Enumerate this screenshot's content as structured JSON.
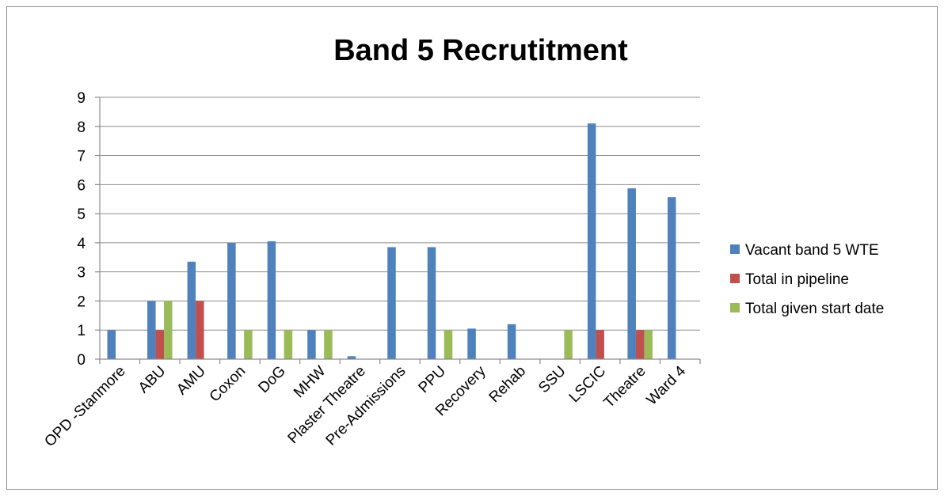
{
  "chart_data": {
    "type": "bar",
    "title": "Band 5 Recrutitment",
    "xlabel": "",
    "ylabel": "",
    "ylim": [
      0,
      9
    ],
    "yticks": [
      0,
      1,
      2,
      3,
      4,
      5,
      6,
      7,
      8,
      9
    ],
    "grid": true,
    "legend_position": "right",
    "categories": [
      "OPD -Stanmore",
      "ABU",
      "AMU",
      "Coxon",
      "DoG",
      "MHW",
      "Plaster Theatre",
      "Pre-Admissions",
      "PPU",
      "Recovery",
      "Rehab",
      "SSU",
      "LSCIC",
      "Theatre",
      "Ward 4"
    ],
    "series": [
      {
        "name": "Vacant band 5 WTE",
        "color": "#4f81bd",
        "values": [
          1,
          2,
          3.35,
          4,
          4.05,
          1,
          0.1,
          3.85,
          3.85,
          1.05,
          1.2,
          0,
          8.1,
          5.87,
          5.57
        ]
      },
      {
        "name": "Total in pipeline",
        "color": "#c0504d",
        "values": [
          0,
          1,
          2,
          0,
          0,
          0,
          0,
          0,
          0,
          0,
          0,
          0,
          1,
          1,
          0
        ]
      },
      {
        "name": "Total given start date",
        "color": "#9bbb59",
        "values": [
          0,
          2,
          0,
          1,
          1,
          1,
          0,
          0,
          1,
          0,
          0,
          1,
          0,
          1,
          0
        ]
      }
    ]
  }
}
